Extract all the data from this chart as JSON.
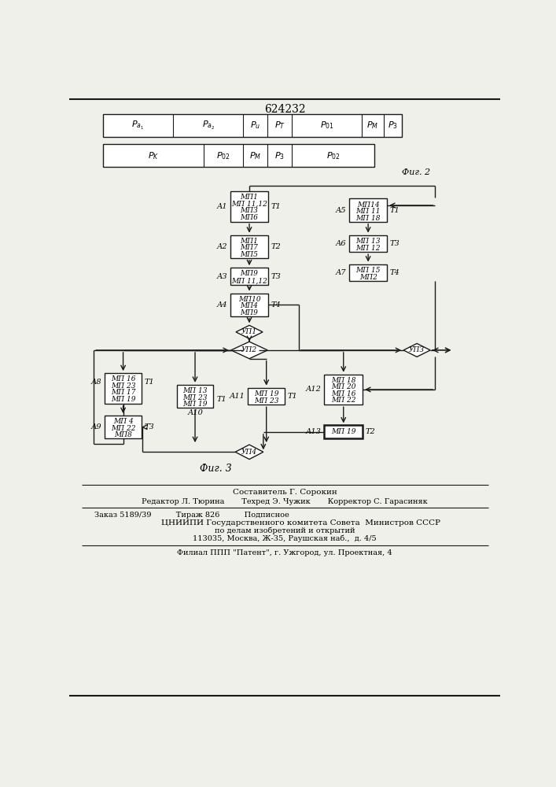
{
  "title": "624232",
  "fig2_label": "Фиг. 2",
  "fig3_label": "Фиг. 3",
  "footer_line1": "Составитель Г. Сорокин",
  "footer_line2": "Редактор Л. Тюрина       Техред Э. Чужик       Корректор С. Гарасиняк",
  "footer_line3": "Заказ 5189/39          Тираж 826          Подписное",
  "footer_line4": "ЦНИИПИ Государственного комитета Совета  Министров СССР",
  "footer_line5": "по делам изобретений и открытий",
  "footer_line6": "113035, Москва, Ж-35, Раушская наб.,  д. 4/5",
  "footer_line7": "Филиал ППП \"Патент\", г. Ужгород, ул. Проектная, 4",
  "bg_color": "#f0f0eb",
  "box_color": "#ffffff",
  "line_color": "#1a1a1a"
}
